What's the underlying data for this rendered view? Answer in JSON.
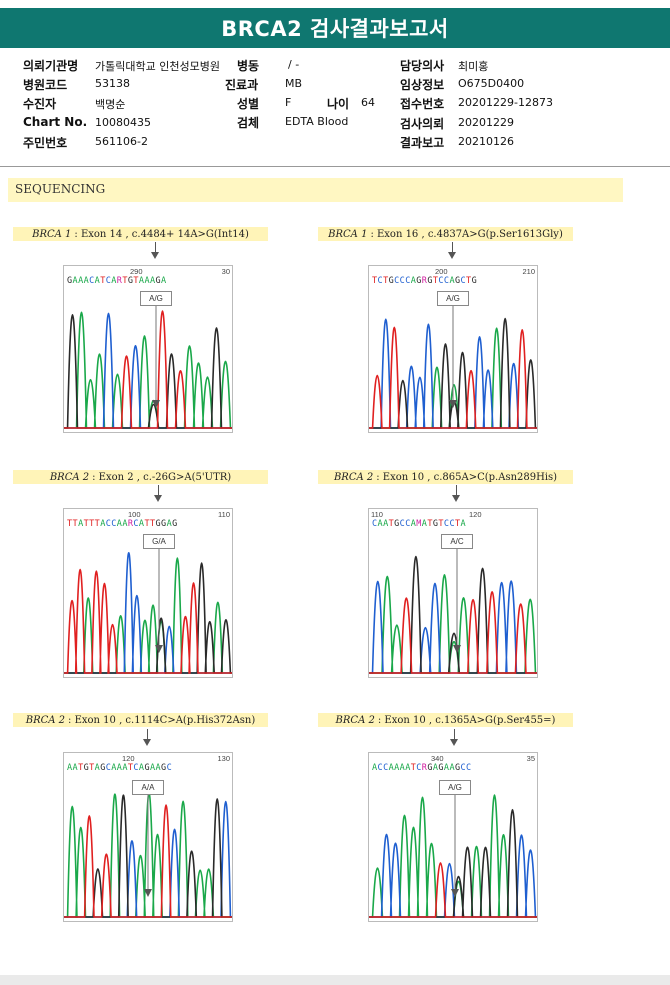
{
  "header": {
    "title": "BRCA2 검사결과보고서"
  },
  "info": {
    "hospital_label": "의뢰기관명",
    "hospital_value": "가톨릭대학교 인천성모병원",
    "ward_label": "병동",
    "ward_value": "/ -",
    "doctor_label": "담당의사",
    "doctor_value": "최미홍",
    "code_label": "병원코드",
    "code_value": "53138",
    "dept_label": "진료과",
    "dept_value": "MB",
    "clinical_label": "임상정보",
    "clinical_value": "O675D0400",
    "patient_label": "수진자",
    "patient_value": "백명순",
    "sex_label": "성별",
    "sex_value": "F",
    "age_label": "나이",
    "age_value": "64",
    "receipt_label": "접수번호",
    "receipt_value": "20201229-12873",
    "chart_label": "Chart No.",
    "chart_value": "10080435",
    "specimen_label": "검체",
    "specimen_value": "EDTA Blood",
    "request_label": "검사의뢰",
    "request_value": "20201229",
    "id_label": "주민번호",
    "id_value": "561106-2",
    "report_label": "결과보고",
    "report_value": "20210126"
  },
  "section": {
    "title": "SEQUENCING"
  },
  "panels": [
    {
      "gene": "BRCA 1",
      "desc": ": Exon 14 , c.4484+ 14A>G(Int14)",
      "pos_left": "290",
      "pos_right": "30",
      "sequence": "GAAACATCARTGTAAAGA",
      "call": "A/G"
    },
    {
      "gene": "BRCA 1",
      "desc": ": Exon 16 , c.4837A>G(p.Ser1613Gly)",
      "pos_left": "200",
      "pos_right": "210",
      "sequence": "TCTGCCCAGRGTCCAGCTG",
      "call": "A/G"
    },
    {
      "gene": "BRCA 2",
      "desc": ": Exon 2 , c.-26G>A(5'UTR)",
      "pos_left": "100",
      "pos_right": "110",
      "sequence": "TTATTTACCAARCATTGGAG",
      "call": "G/A"
    },
    {
      "gene": "BRCA 2",
      "desc": ": Exon 10 , c.865A>C(p.Asn289His)",
      "pos_left": "110",
      "pos_right": "120",
      "sequence": "CAATGCCAMATGTCCTA",
      "call": "A/C"
    },
    {
      "gene": "BRCA 2",
      "desc": ": Exon 10 , c.1114C>A(p.His372Asn)",
      "pos_left": "120",
      "pos_right": "130",
      "sequence": "AATGTAGCAAATCAGAAGC",
      "call": "A/A"
    },
    {
      "gene": "BRCA 2",
      "desc": ": Exon 10 , c.1365A>G(p.Ser455=)",
      "pos_left": "340",
      "pos_right": "35",
      "sequence": "ACCAAAATCRGAGAAGCC",
      "call": "A/G"
    }
  ],
  "colors": {
    "header_bg": "#0f7770",
    "base_A": "#1aa84a",
    "base_C": "#1f5fd0",
    "base_G": "#2a2a2a",
    "base_T": "#e02020",
    "base_ambiguous": "#d01da0"
  }
}
